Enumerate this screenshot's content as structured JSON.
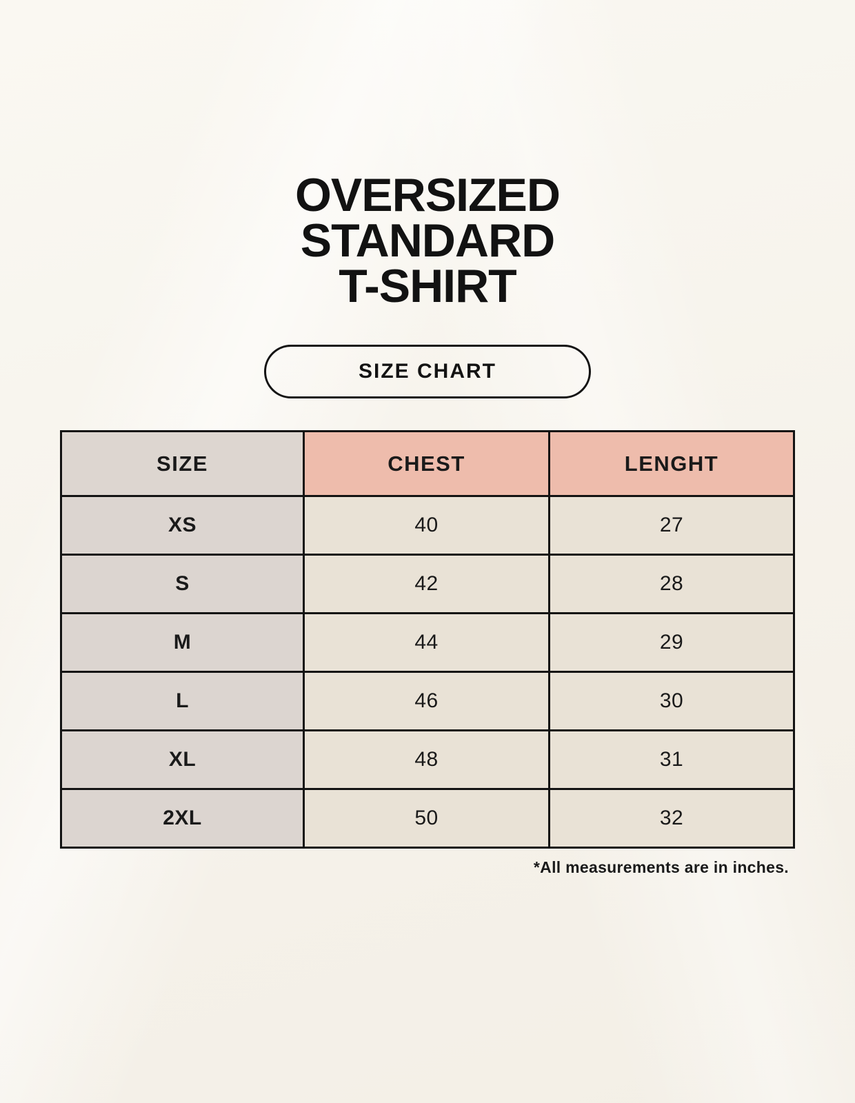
{
  "title": {
    "line1": "OVERSIZED",
    "line2": "STANDARD",
    "line3": "T-SHIRT"
  },
  "size_chart_button": {
    "label": "SIZE CHART"
  },
  "table": {
    "headers": [
      {
        "label": "SIZE"
      },
      {
        "label": "CHEST"
      },
      {
        "label": "LENGHT"
      }
    ],
    "rows": [
      {
        "size": "XS",
        "chest": "40",
        "length": "27"
      },
      {
        "size": "S",
        "chest": "42",
        "length": "28"
      },
      {
        "size": "M",
        "chest": "44",
        "length": "29"
      },
      {
        "size": "L",
        "chest": "46",
        "length": "30"
      },
      {
        "size": "XL",
        "chest": "48",
        "length": "31"
      },
      {
        "size": "2XL",
        "chest": "50",
        "length": "32"
      }
    ]
  },
  "footnote": "*All measurements are in inches.",
  "colors": {
    "background": "#f7f4ed",
    "header_size_bg": "#ddd6d0",
    "header_measure_bg": "#eebcac",
    "body_size_bg": "#dcd5d0",
    "body_data_bg": "#e9e2d6",
    "border": "#131313",
    "text": "#1a1a1a"
  }
}
